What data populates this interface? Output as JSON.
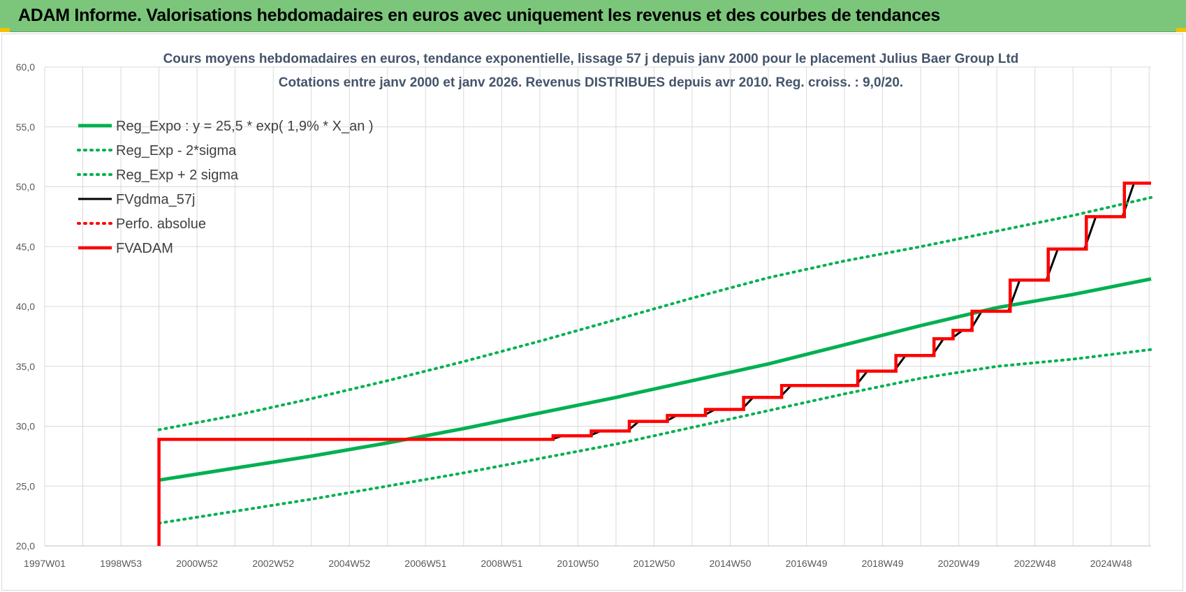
{
  "header": {
    "title": "ADAM Informe. Valorisations hebdomadaires en euros avec uniquement les revenus et des courbes de tendances"
  },
  "chart_data": {
    "type": "line",
    "title": "Cours moyens hebdomadaires en euros, tendance exponentielle, lissage 57 j depuis janv 2000 pour le placement Julius Baer Group Ltd",
    "subtitle": "Cotations entre janv 2000 et janv 2026. Revenus DISTRIBUES depuis avr 2010. Reg. croiss. : 9,0/20.",
    "xlabel": "",
    "ylabel": "",
    "x_range": [
      1997.0,
      2026.05
    ],
    "ylim": [
      20,
      60
    ],
    "yticks": [
      "20,0",
      "25,0",
      "30,0",
      "35,0",
      "40,0",
      "45,0",
      "50,0",
      "55,0",
      "60,0"
    ],
    "xticks": [
      {
        "label": "1997W01",
        "x": 1997.0
      },
      {
        "label": "1998W53",
        "x": 1999.0
      },
      {
        "label": "2000W52",
        "x": 2001.0
      },
      {
        "label": "2002W52",
        "x": 2003.0
      },
      {
        "label": "2004W52",
        "x": 2005.0
      },
      {
        "label": "2006W51",
        "x": 2007.0
      },
      {
        "label": "2008W51",
        "x": 2009.0
      },
      {
        "label": "2010W50",
        "x": 2011.0
      },
      {
        "label": "2012W50",
        "x": 2013.0
      },
      {
        "label": "2014W50",
        "x": 2015.0
      },
      {
        "label": "2016W49",
        "x": 2017.0
      },
      {
        "label": "2018W49",
        "x": 2019.0
      },
      {
        "label": "2020W49",
        "x": 2021.0
      },
      {
        "label": "2022W48",
        "x": 2023.0
      },
      {
        "label": "2024W48",
        "x": 2025.0
      }
    ],
    "grid": true,
    "legend_position": "top-left",
    "series": [
      {
        "name": "Reg_Expo : y = 25,5 * exp( 1,9% *  X_an )",
        "style": "solid",
        "color": "#00b050",
        "x": [
          2000.0,
          2002.0,
          2004.0,
          2006.0,
          2008.0,
          2010.0,
          2012.0,
          2014.0,
          2016.0,
          2018.0,
          2020.0,
          2022.0,
          2024.0,
          2026.05
        ],
        "values": [
          25.5,
          26.5,
          27.5,
          28.6,
          29.8,
          31.1,
          32.4,
          33.8,
          35.2,
          36.8,
          38.4,
          39.9,
          41.0,
          42.3
        ]
      },
      {
        "name": "Reg_Exp - 2*sigma",
        "style": "dotted",
        "color": "#00b050",
        "x": [
          2000.0,
          2002.0,
          2004.0,
          2006.0,
          2008.0,
          2010.0,
          2012.0,
          2014.0,
          2016.0,
          2018.0,
          2020.0,
          2022.0,
          2024.0,
          2026.05
        ],
        "values": [
          21.9,
          22.9,
          23.9,
          25.0,
          26.1,
          27.3,
          28.5,
          29.9,
          31.3,
          32.7,
          34.0,
          35.0,
          35.6,
          36.4
        ]
      },
      {
        "name": "Reg_Exp + 2 sigma",
        "style": "dotted",
        "color": "#00b050",
        "x": [
          2000.0,
          2002.0,
          2004.0,
          2006.0,
          2008.0,
          2010.0,
          2012.0,
          2014.0,
          2016.0,
          2018.0,
          2020.0,
          2022.0,
          2024.0,
          2026.05
        ],
        "values": [
          29.7,
          30.9,
          32.3,
          33.8,
          35.4,
          37.1,
          38.9,
          40.7,
          42.4,
          43.8,
          45.0,
          46.3,
          47.6,
          49.1
        ]
      },
      {
        "name": "FVgdma_57j",
        "style": "solid",
        "color": "#000000",
        "x": [
          2000.0,
          2000.0,
          2010.3,
          2010.6,
          2011.3,
          2011.6,
          2012.3,
          2012.6,
          2013.3,
          2013.6,
          2014.3,
          2014.6,
          2015.3,
          2015.6,
          2016.3,
          2016.6,
          2018.3,
          2018.6,
          2019.3,
          2019.6,
          2020.3,
          2020.6,
          2020.8,
          2021.1,
          2021.3,
          2021.6,
          2022.3,
          2022.6,
          2023.3,
          2023.6,
          2024.3,
          2024.6,
          2025.3,
          2025.6,
          2026.05
        ],
        "values": [
          20.0,
          28.9,
          28.9,
          29.2,
          29.2,
          29.6,
          29.6,
          30.4,
          30.4,
          30.9,
          30.9,
          31.4,
          31.4,
          32.4,
          32.4,
          33.4,
          33.4,
          34.6,
          34.6,
          35.9,
          35.9,
          37.3,
          37.3,
          38.0,
          38.0,
          39.6,
          39.6,
          42.2,
          42.2,
          44.8,
          44.8,
          47.5,
          47.5,
          50.3,
          50.3
        ]
      },
      {
        "name": "Perfo. absolue",
        "style": "dotted",
        "color": "#ff0000",
        "x": [],
        "values": []
      },
      {
        "name": "FVADAM",
        "style": "solid",
        "color": "#ff0000",
        "x": [
          2000.0,
          2000.0,
          2010.35,
          2010.35,
          2011.35,
          2011.35,
          2012.35,
          2012.35,
          2013.35,
          2013.35,
          2014.35,
          2014.35,
          2015.35,
          2015.35,
          2016.35,
          2016.35,
          2018.35,
          2018.35,
          2019.35,
          2019.35,
          2020.35,
          2020.35,
          2020.85,
          2020.85,
          2021.35,
          2021.35,
          2022.35,
          2022.35,
          2023.35,
          2023.35,
          2024.35,
          2024.35,
          2025.35,
          2025.35,
          2026.05
        ],
        "values": [
          20.0,
          28.9,
          28.9,
          29.2,
          29.2,
          29.6,
          29.6,
          30.4,
          30.4,
          30.9,
          30.9,
          31.4,
          31.4,
          32.4,
          32.4,
          33.4,
          33.4,
          34.6,
          34.6,
          35.9,
          35.9,
          37.3,
          37.3,
          38.0,
          38.0,
          39.6,
          39.6,
          42.2,
          42.2,
          44.8,
          44.8,
          47.5,
          47.5,
          50.3,
          50.3
        ]
      }
    ]
  }
}
